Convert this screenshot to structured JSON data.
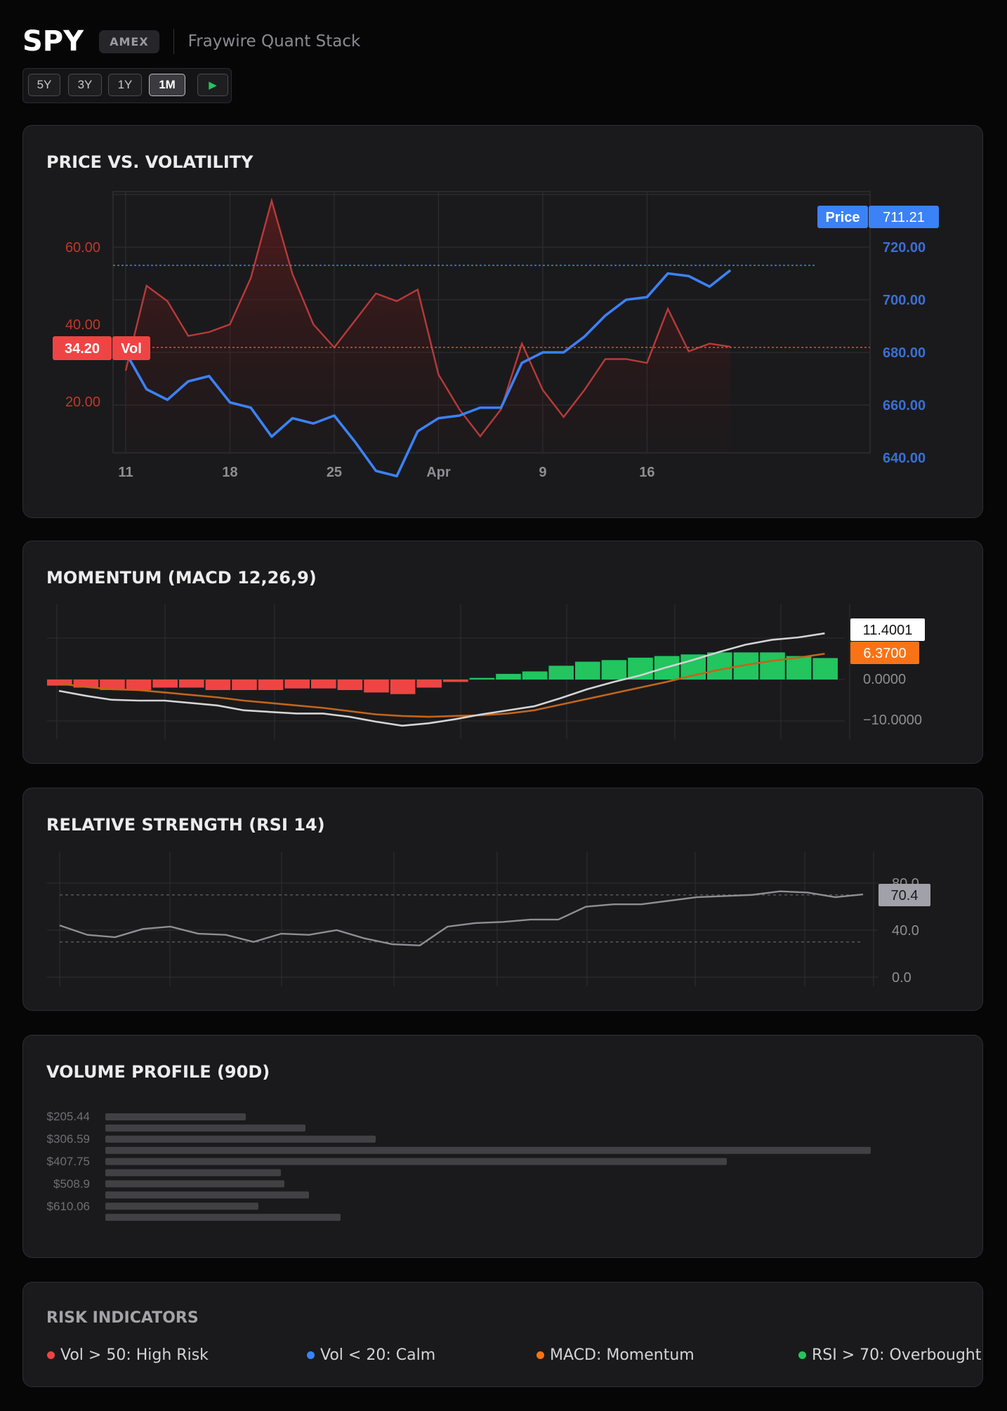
{
  "header": {
    "ticker": "SPY",
    "exchange": "AMEX",
    "subtitle": "Fraywire Quant Stack"
  },
  "range_buttons": [
    {
      "label": "5Y",
      "active": false
    },
    {
      "label": "3Y",
      "active": false
    },
    {
      "label": "1Y",
      "active": false
    },
    {
      "label": "1M",
      "active": true
    }
  ],
  "play_symbol": "▶",
  "colors": {
    "price": "#3b82f6",
    "vol": "#ef4444",
    "macd_line": "#e5e5e5",
    "signal_line": "#f97316",
    "hist_pos": "#22c55e",
    "hist_neg": "#ef4444",
    "rsi_line": "#a1a1aa"
  },
  "chart_data": [
    {
      "type": "line",
      "title": "PRICE VS. VOLATILITY",
      "x_tick_labels": [
        "11",
        "18",
        "25",
        "Apr",
        "9",
        "16"
      ],
      "x_range": [
        0,
        29.5
      ],
      "x_ticks": [
        0,
        5,
        10,
        15,
        20,
        25
      ],
      "series": [
        {
          "name": "Price",
          "axis": "right",
          "values": [
            680,
            666,
            662,
            669,
            671,
            661,
            659,
            648,
            655,
            653,
            656,
            646,
            635,
            633,
            650,
            655,
            656,
            659,
            659,
            676,
            680,
            680,
            686,
            694,
            700,
            701,
            710,
            709,
            705,
            711.21
          ]
        },
        {
          "name": "Vol",
          "axis": "left",
          "values": [
            28,
            50,
            46,
            37,
            38,
            40,
            52,
            72,
            53,
            40,
            34,
            41,
            48,
            46,
            49,
            27,
            18,
            11,
            18,
            35,
            23,
            16,
            23,
            31,
            31,
            30,
            44,
            33,
            35,
            34.2
          ]
        }
      ],
      "left_axis": {
        "ticks": [
          "20.00",
          "40.00",
          "60.00"
        ],
        "range": [
          0,
          80
        ]
      },
      "right_axis": {
        "ticks": [
          "640.00",
          "660.00",
          "680.00",
          "700.00",
          "720.00"
        ],
        "range": [
          620,
          720
        ]
      },
      "last_price": "711.21",
      "last_vol": "34.20",
      "price_tag": "Price",
      "vol_tag": "Vol"
    },
    {
      "type": "bar",
      "title": "MOMENTUM (MACD 12,26,9)",
      "series": [
        {
          "name": "histogram",
          "values": [
            -1.5,
            -2.0,
            -2.6,
            -2.6,
            -2.0,
            -2.0,
            -2.6,
            -2.6,
            -2.6,
            -2.2,
            -2.2,
            -2.6,
            -3.2,
            -3.6,
            -2.0,
            -0.6,
            0.4,
            1.4,
            2.0,
            3.4,
            4.4,
            4.8,
            5.4,
            5.8,
            6.2,
            6.7,
            6.7,
            6.7,
            5.8,
            5.3
          ]
        },
        {
          "name": "macd",
          "values": [
            -2.8,
            -4.0,
            -5.0,
            -5.2,
            -5.2,
            -5.8,
            -6.4,
            -7.6,
            -8.0,
            -8.4,
            -8.4,
            -9.2,
            -10.4,
            -11.4,
            -10.8,
            -9.8,
            -8.6,
            -7.6,
            -6.6,
            -4.6,
            -2.4,
            -0.6,
            1.0,
            3.0,
            4.8,
            6.8,
            8.6,
            9.8,
            10.4,
            11.4001
          ]
        },
        {
          "name": "signal",
          "values": [
            -1.0,
            -1.8,
            -2.4,
            -2.6,
            -3.2,
            -3.8,
            -4.4,
            -5.2,
            -5.8,
            -6.4,
            -7.0,
            -7.8,
            -8.6,
            -9.0,
            -9.2,
            -9.0,
            -8.8,
            -8.4,
            -7.6,
            -6.2,
            -4.8,
            -3.4,
            -2.0,
            -0.6,
            1.0,
            2.4,
            3.6,
            4.6,
            5.4,
            6.37
          ]
        }
      ],
      "y_axis": {
        "ticks": [
          "0.0000",
          "−10.0000"
        ],
        "range": [
          -15,
          15
        ]
      },
      "last_macd": "11.4001",
      "last_signal": "6.3700"
    },
    {
      "type": "line",
      "title": "RELATIVE STRENGTH (RSI 14)",
      "series": [
        {
          "name": "rsi",
          "values": [
            44,
            36,
            34,
            41,
            43,
            37,
            36,
            30,
            37,
            36,
            40,
            33,
            28,
            27,
            43,
            46,
            47,
            49,
            49,
            60,
            62,
            62,
            65,
            68,
            69,
            70,
            73,
            72,
            68,
            70.4
          ]
        }
      ],
      "y_axis": {
        "ticks": [
          "0.0",
          "40.0",
          "80.0"
        ],
        "range": [
          0,
          80
        ],
        "guides": [
          30,
          70
        ]
      },
      "last_rsi": "70.4"
    },
    {
      "type": "bar",
      "orientation": "horizontal",
      "title": "VOLUME PROFILE (90D)",
      "price_labels": [
        "$205.44",
        "$306.59",
        "$407.75",
        "$508.9",
        "$610.06"
      ],
      "values": [
        200,
        285,
        385,
        1090,
        885,
        250,
        255,
        290,
        218,
        335
      ]
    }
  ],
  "risk": {
    "title": "RISK INDICATORS",
    "items": [
      {
        "label": "Vol > 50: High Risk",
        "color": "#ef4444"
      },
      {
        "label": "Vol < 20: Calm",
        "color": "#3b82f6"
      },
      {
        "label": "MACD: Momentum",
        "color": "#f97316"
      },
      {
        "label": "RSI > 70: Overbought",
        "color": "#22c55e"
      }
    ]
  }
}
